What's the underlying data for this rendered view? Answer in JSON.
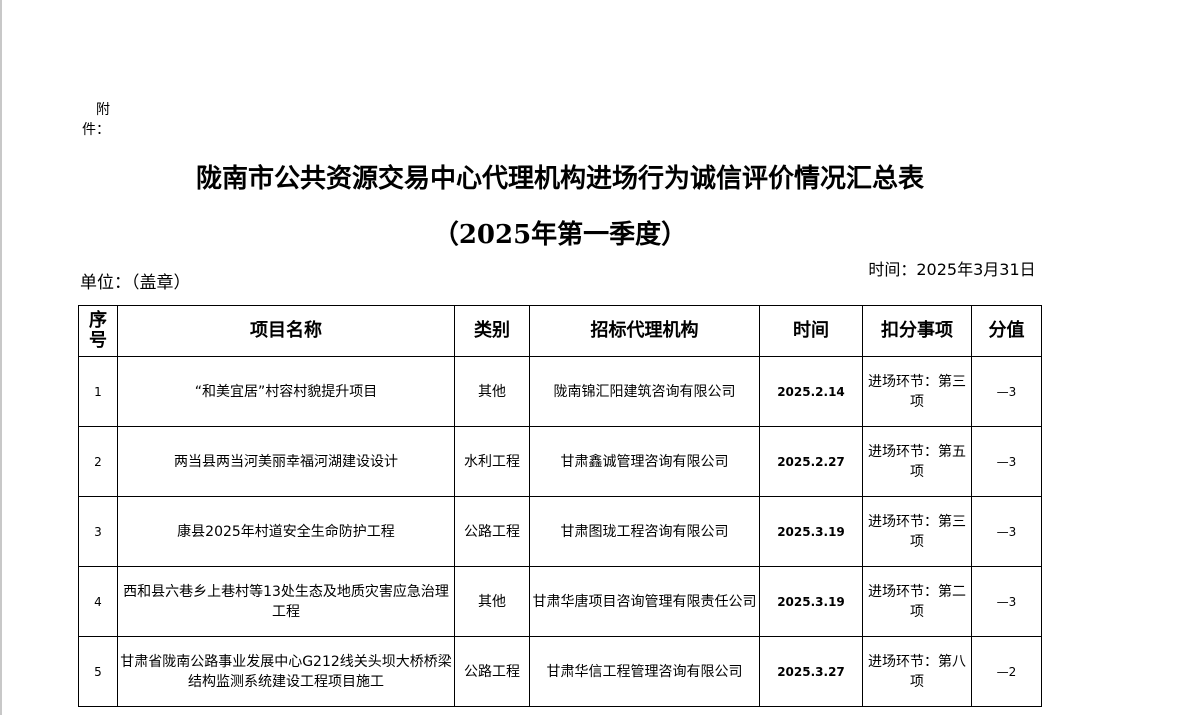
{
  "attachment": "附件：",
  "title": "陇南市公共资源交易中心代理机构进场行为诚信评价情况汇总表",
  "subtitle": "（2025年第一季度）",
  "unit": "单位：（盖章）",
  "date": "时间：2025年3月31日",
  "headers": [
    "序号",
    "项目名称",
    "类别",
    "招标代理机构",
    "时间",
    "扣分事项",
    "分值"
  ],
  "rows": [
    [
      "1",
      "“和美宜居”村容村貌提升项目",
      "其他",
      "陇南锦汇阳建筑咨询有限公司",
      "2025.2.14",
      "进场环节：第三项",
      "—3"
    ],
    [
      "2",
      "两当县两当河美丽幸福河湖建设设计",
      "水利工程",
      "甘肃鑫诚管理咨询有限公司",
      "2025.2.27",
      "进场环节：第五项",
      "—3"
    ],
    [
      "3",
      "康县2025年村道安全生命防护工程",
      "公路工程",
      "甘肃图珑工程咨询有限公司",
      "2025.3.19",
      "进场环节：第三项",
      "—3"
    ],
    [
      "4",
      "西和县六巷乡上巷村等13处生态及地质灾害应急治理工程",
      "其他",
      "甘肃华唐项目咨询管理有限责任公司",
      "2025.3.19",
      "进场环节：第二项",
      "—3"
    ],
    [
      "5",
      "甘肃省陇南公路事业发展中心G212线关头坝大桥桥梁结构监测系统建设工程项目施工",
      "公路工程",
      "甘肃华信工程管理咨询有限公司",
      "2025.3.27",
      "进场环节：第八项",
      "—2"
    ]
  ]
}
